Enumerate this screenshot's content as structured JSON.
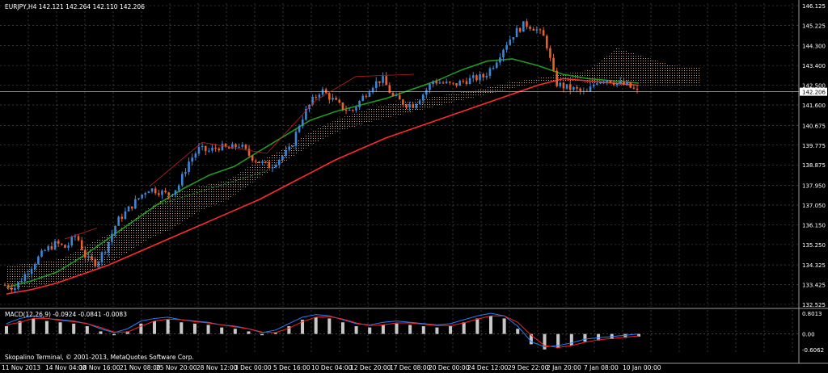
{
  "header": {
    "symbol_line": "EURJPY,H4  142.121 142.264 142.110 142.206"
  },
  "macd_panel": {
    "label": "MACD(12,26,9) -0.0924 -0.0841 -0.0083",
    "price_labels": [
      "0.8013",
      "0.00",
      "-0.6062"
    ]
  },
  "footer": {
    "copyright": "Skopalino Terminal, © 2001-2013, MetaQuotes Software Corp."
  },
  "colors": {
    "background": "#000000",
    "grid": "#5a5a5a",
    "bull_candle": "#3c86d8",
    "bear_candle": "#e8602a",
    "ma_red": "#ff2a2a",
    "ma_green": "#1f9a1f",
    "cloud": "#f0c0a0",
    "macd_hist": "#c8c8c8",
    "macd_signal_blue": "#2080ff",
    "macd_signal_red": "#ff2020"
  },
  "chart_data": {
    "type": "candlestick",
    "symbol": "EURJPY",
    "timeframe": "H4",
    "last_price": "142.206",
    "last_price_value": 142.206,
    "y_ticks": [
      "146.125",
      "145.225",
      "144.300",
      "143.400",
      "142.500",
      "141.600",
      "140.675",
      "139.775",
      "138.875",
      "137.950",
      "137.050",
      "136.150",
      "135.250",
      "134.325",
      "133.425",
      "132.525"
    ],
    "y_tick_values": [
      146.125,
      145.225,
      144.3,
      143.4,
      142.5,
      141.6,
      140.675,
      139.775,
      138.875,
      137.95,
      137.05,
      136.15,
      135.25,
      134.325,
      133.425,
      132.525
    ],
    "ylim": [
      132.525,
      146.125
    ],
    "x_ticks": [
      "11 Nov 2013",
      "14 Nov 04:00",
      "18 Nov 16:00",
      "21 Nov 08:00",
      "25 Nov 20:00",
      "28 Nov 12:00",
      "3 Dec 00:00",
      "5 Dec 16:00",
      "10 Dec 04:00",
      "12 Dec 20:00",
      "17 Dec 08:00",
      "20 Dec 00:00",
      "24 Dec 12:00",
      "29 Dec 22:00",
      "2 Jan 20:00",
      "7 Jan 08:00",
      "10 Jan 00:00"
    ],
    "close_path": [
      133.4,
      133.3,
      133.9,
      134.5,
      135.0,
      135.3,
      135.1,
      135.7,
      134.6,
      134.4,
      135.2,
      136.3,
      136.8,
      137.3,
      137.8,
      137.7,
      137.5,
      137.9,
      139.0,
      139.6,
      139.5,
      139.7,
      139.6,
      139.8,
      139.3,
      139.0,
      138.8,
      139.2,
      139.6,
      140.9,
      141.7,
      142.3,
      141.9,
      141.5,
      141.3,
      141.9,
      142.5,
      142.8,
      142.0,
      141.7,
      141.6,
      142.1,
      142.7,
      142.6,
      142.5,
      142.7,
      142.8,
      142.9,
      143.5,
      144.3,
      144.9,
      145.3,
      145.1,
      144.6,
      142.6,
      142.4,
      142.3,
      142.1,
      142.7,
      142.8,
      142.6,
      142.5,
      142.2
    ],
    "ma_red": [
      133.0,
      133.2,
      133.5,
      133.9,
      134.3,
      134.8,
      135.3,
      135.8,
      136.3,
      136.8,
      137.3,
      137.9,
      138.5,
      139.1,
      139.6,
      140.1,
      140.5,
      140.9,
      141.3,
      141.7,
      142.1,
      142.5,
      142.8,
      142.7,
      142.6,
      142.5
    ],
    "ma_green": [
      133.3,
      133.6,
      134.0,
      134.7,
      135.5,
      136.3,
      137.1,
      137.8,
      138.4,
      138.8,
      139.5,
      140.2,
      140.9,
      141.3,
      141.6,
      141.9,
      142.3,
      142.7,
      143.2,
      143.6,
      143.7,
      143.4,
      143.0,
      142.8,
      142.7,
      142.6
    ],
    "cloud_upper": [
      134.3,
      134.4,
      134.6,
      135.3,
      135.9,
      136.8,
      137.6,
      137.9,
      138.2,
      139.0,
      139.6,
      140.4,
      141.0,
      141.4,
      141.7,
      141.9,
      142.1,
      142.3,
      142.6,
      142.8,
      143.0,
      143.2,
      144.2,
      143.8,
      143.4,
      143.3
    ],
    "cloud_lower": [
      133.2,
      133.3,
      133.6,
      134.0,
      134.6,
      135.4,
      136.0,
      136.8,
      137.3,
      138.2,
      139.0,
      139.8,
      140.4,
      140.8,
      141.1,
      141.4,
      141.7,
      142.0,
      142.3,
      142.6,
      142.7,
      142.6,
      142.5,
      142.5,
      142.5,
      142.5
    ],
    "macd_histogram": [
      0.3,
      0.5,
      0.6,
      0.5,
      0.45,
      0.4,
      0.3,
      0.1,
      -0.05,
      0.1,
      0.4,
      0.5,
      0.55,
      0.45,
      0.4,
      0.35,
      0.25,
      0.2,
      0.1,
      -0.05,
      0.05,
      0.3,
      0.55,
      0.65,
      0.6,
      0.45,
      0.3,
      0.25,
      0.35,
      0.4,
      0.35,
      0.3,
      0.25,
      0.3,
      0.45,
      0.6,
      0.7,
      0.6,
      0.2,
      -0.4,
      -0.6,
      -0.55,
      -0.45,
      -0.3,
      -0.25,
      -0.2,
      -0.15,
      -0.1
    ],
    "macd_ylim": [
      -0.6062,
      0.8013
    ]
  }
}
